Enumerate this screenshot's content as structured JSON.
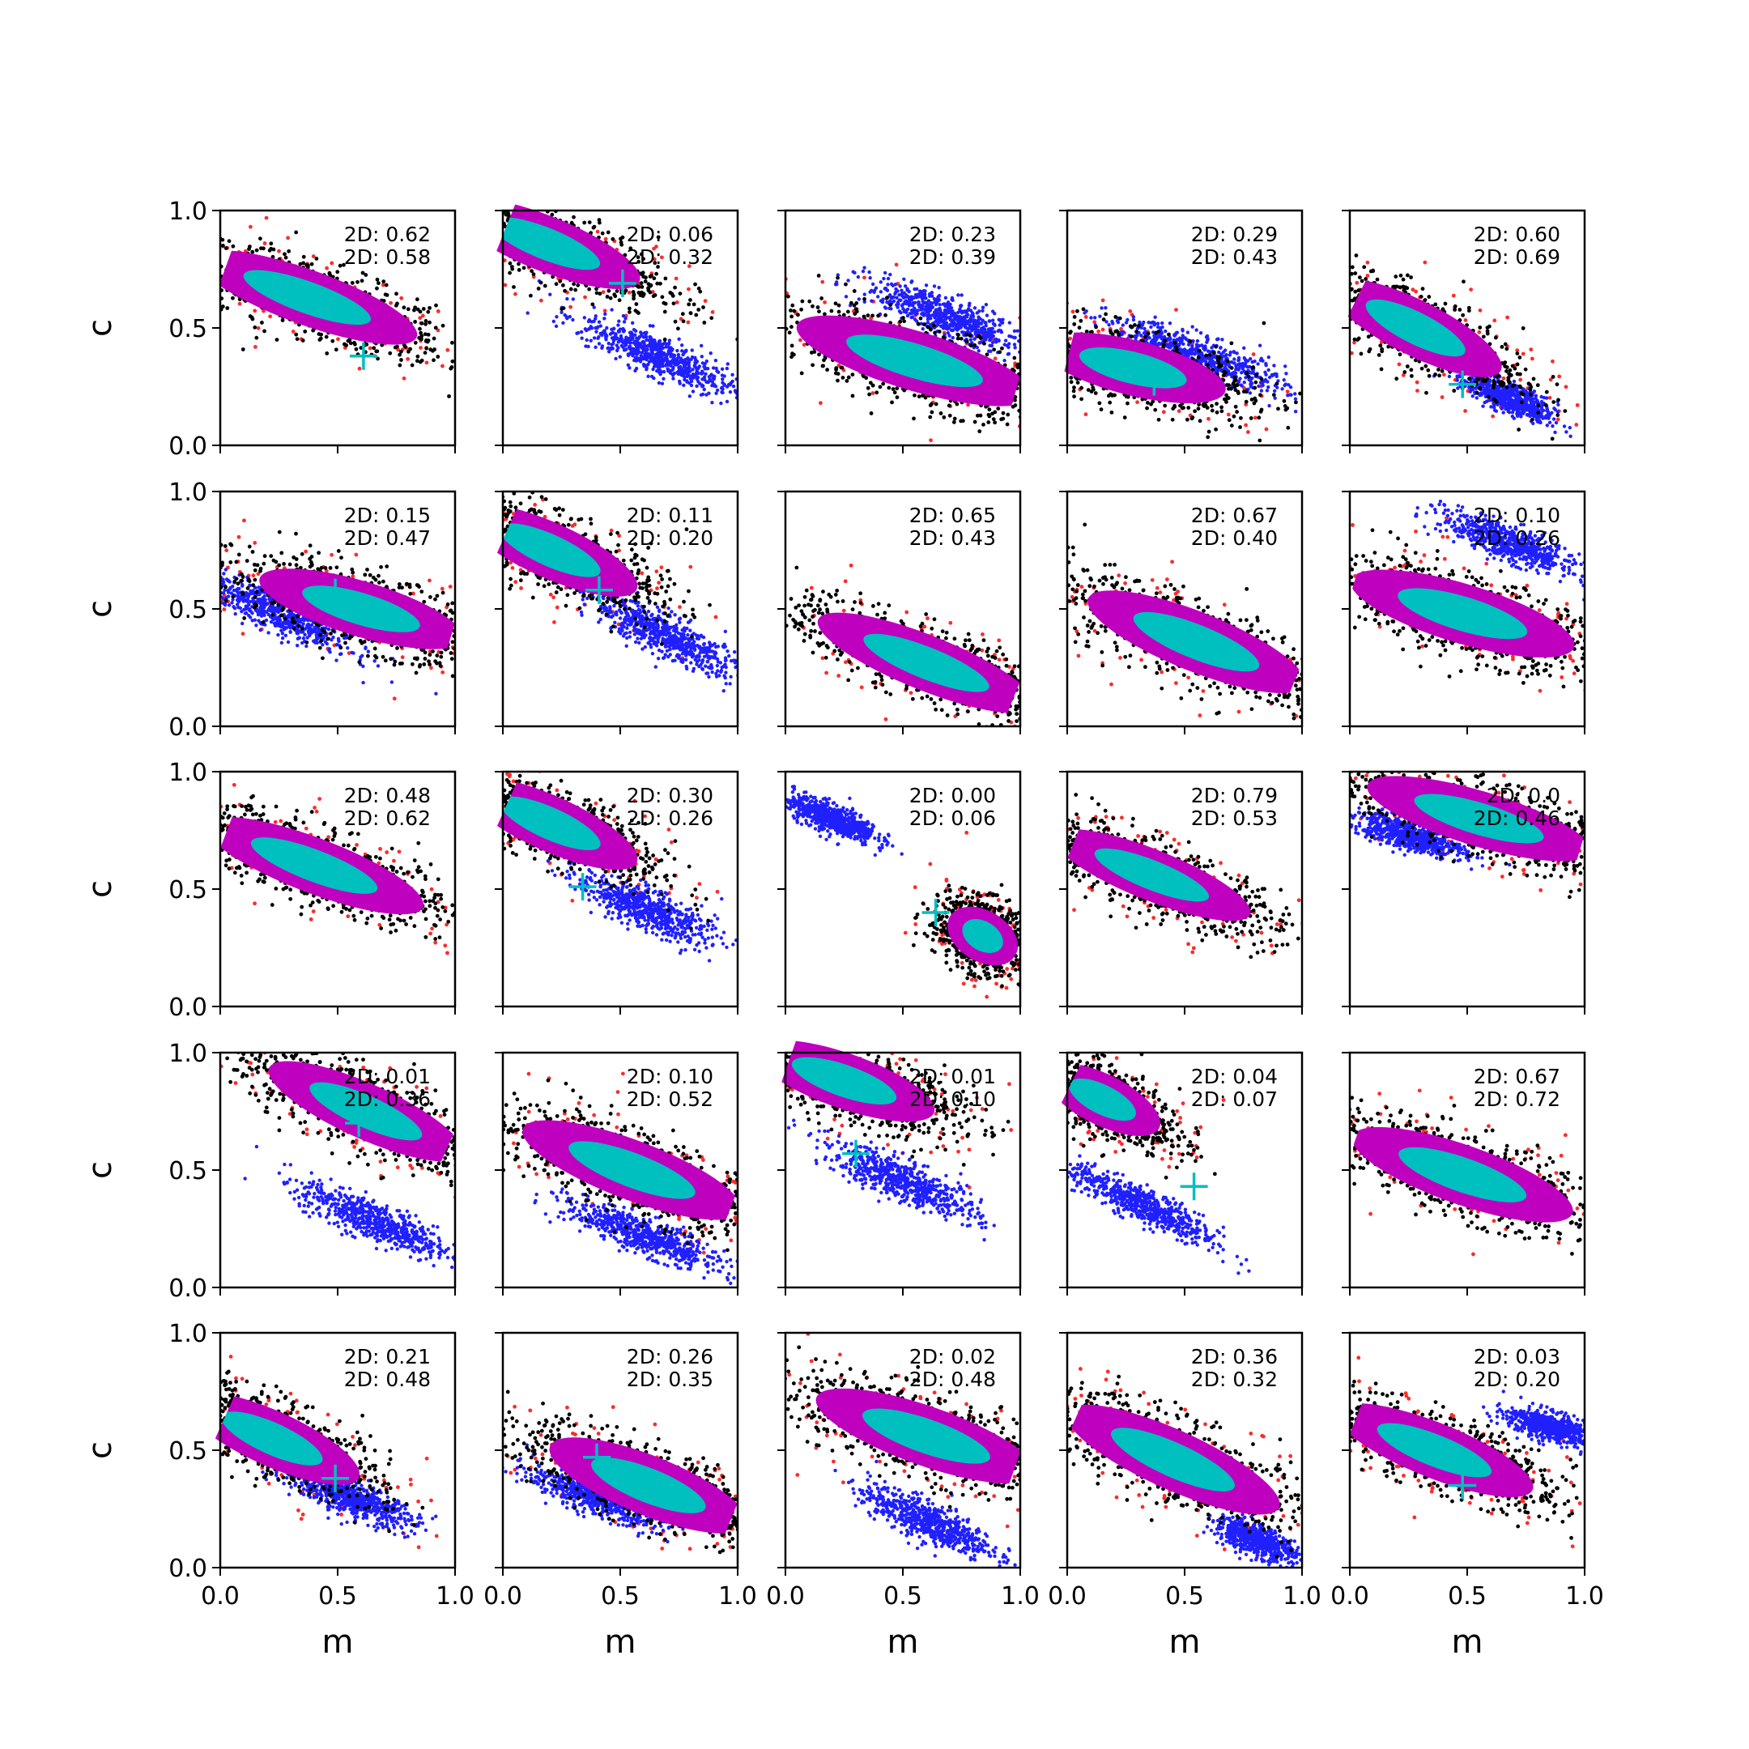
{
  "chart_data": {
    "type": "scatter",
    "layout": "5x5 grid of panels, shared axes",
    "xlabel": "m",
    "ylabel": "c",
    "xlim": [
      0.0,
      1.0
    ],
    "ylim": [
      0.0,
      1.0
    ],
    "xticks": [
      "0.0",
      "0.5",
      "1.0"
    ],
    "yticks": [
      "0.0",
      "0.5",
      "1.0"
    ],
    "grid": false,
    "legend": "none",
    "colors": {
      "outer_scatter": "#ff2a2a",
      "black_samples": "#000000",
      "second_mode": "#2020ff",
      "mid_contour": "#bf00bf",
      "inner_contour": "#00bfbf",
      "truth_marker": "#00bfbf"
    },
    "panels": [
      {
        "row": 0,
        "col": 0,
        "labels": [
          "2D: 0.62",
          "2D: 0.58"
        ],
        "main": {
          "cx": 0.37,
          "cy": 0.63,
          "hw": 0.55,
          "hh": 0.13,
          "slope": -0.36
        },
        "blue": null,
        "truth": [
          0.61,
          0.38
        ]
      },
      {
        "row": 0,
        "col": 1,
        "labels": [
          "2D: 0.06",
          "2D: 0.32"
        ],
        "main": {
          "cx": 0.18,
          "cy": 0.86,
          "hw": 0.48,
          "hh": 0.13,
          "slope": -0.4
        },
        "blue": {
          "cx": 0.66,
          "cy": 0.38,
          "hw": 0.35,
          "hh": 0.08,
          "slope": -0.45
        },
        "truth": [
          0.51,
          0.69
        ]
      },
      {
        "row": 0,
        "col": 2,
        "labels": [
          "2D: 0.23",
          "2D: 0.39"
        ],
        "main": {
          "cx": 0.55,
          "cy": 0.36,
          "hw": 0.58,
          "hh": 0.14,
          "slope": -0.3
        },
        "blue": {
          "cx": 0.68,
          "cy": 0.55,
          "hw": 0.35,
          "hh": 0.08,
          "slope": -0.4
        },
        "truth": null
      },
      {
        "row": 0,
        "col": 3,
        "labels": [
          "2D: 0.29",
          "2D: 0.43"
        ],
        "main": {
          "cx": 0.28,
          "cy": 0.33,
          "hw": 0.45,
          "hh": 0.13,
          "slope": -0.25
        },
        "blue": {
          "cx": 0.55,
          "cy": 0.38,
          "hw": 0.4,
          "hh": 0.08,
          "slope": -0.35
        },
        "truth": [
          0.37,
          0.27
        ]
      },
      {
        "row": 0,
        "col": 4,
        "labels": [
          "2D: 0.60",
          "2D: 0.69"
        ],
        "main": {
          "cx": 0.28,
          "cy": 0.5,
          "hw": 0.45,
          "hh": 0.13,
          "slope": -0.5
        },
        "blue": {
          "cx": 0.68,
          "cy": 0.2,
          "hw": 0.2,
          "hh": 0.06,
          "slope": -0.45
        },
        "truth": [
          0.48,
          0.26
        ]
      },
      {
        "row": 1,
        "col": 0,
        "labels": [
          "2D: 0.15",
          "2D: 0.47"
        ],
        "main": {
          "cx": 0.6,
          "cy": 0.5,
          "hw": 0.5,
          "hh": 0.13,
          "slope": -0.3
        },
        "blue": {
          "cx": 0.25,
          "cy": 0.48,
          "hw": 0.35,
          "hh": 0.08,
          "slope": -0.45
        },
        "truth": [
          0.49,
          0.57
        ]
      },
      {
        "row": 1,
        "col": 1,
        "labels": [
          "2D: 0.11",
          "2D: 0.20"
        ],
        "main": {
          "cx": 0.2,
          "cy": 0.75,
          "hw": 0.45,
          "hh": 0.13,
          "slope": -0.45
        },
        "blue": {
          "cx": 0.7,
          "cy": 0.38,
          "hw": 0.35,
          "hh": 0.08,
          "slope": -0.5
        },
        "truth": [
          0.41,
          0.58
        ]
      },
      {
        "row": 1,
        "col": 2,
        "labels": [
          "2D: 0.65",
          "2D: 0.43"
        ],
        "main": {
          "cx": 0.6,
          "cy": 0.27,
          "hw": 0.55,
          "hh": 0.13,
          "slope": -0.4
        },
        "blue": null,
        "truth": null
      },
      {
        "row": 1,
        "col": 3,
        "labels": [
          "2D: 0.67",
          "2D: 0.40"
        ],
        "main": {
          "cx": 0.55,
          "cy": 0.36,
          "hw": 0.55,
          "hh": 0.14,
          "slope": -0.4
        },
        "blue": null,
        "truth": null
      },
      {
        "row": 1,
        "col": 4,
        "labels": [
          "2D: 0.10",
          "2D: 0.26"
        ],
        "main": {
          "cx": 0.48,
          "cy": 0.48,
          "hw": 0.55,
          "hh": 0.14,
          "slope": -0.3
        },
        "blue": {
          "cx": 0.68,
          "cy": 0.78,
          "hw": 0.3,
          "hh": 0.07,
          "slope": -0.4
        },
        "truth": null
      },
      {
        "row": 2,
        "col": 0,
        "labels": [
          "2D: 0.48",
          "2D: 0.62"
        ],
        "main": {
          "cx": 0.4,
          "cy": 0.6,
          "hw": 0.55,
          "hh": 0.13,
          "slope": -0.38
        },
        "blue": null,
        "truth": null
      },
      {
        "row": 2,
        "col": 1,
        "labels": [
          "2D: 0.30",
          "2D: 0.26"
        ],
        "main": {
          "cx": 0.2,
          "cy": 0.78,
          "hw": 0.45,
          "hh": 0.13,
          "slope": -0.45
        },
        "blue": {
          "cx": 0.6,
          "cy": 0.42,
          "hw": 0.3,
          "hh": 0.08,
          "slope": -0.45
        },
        "truth": [
          0.34,
          0.51
        ]
      },
      {
        "row": 2,
        "col": 2,
        "labels": [
          "2D: 0.00",
          "2D: 0.06"
        ],
        "main": {
          "cx": 0.84,
          "cy": 0.3,
          "hw": 0.18,
          "hh": 0.12,
          "slope": -0.6
        },
        "blue": {
          "cx": 0.2,
          "cy": 0.8,
          "hw": 0.2,
          "hh": 0.06,
          "slope": -0.4
        },
        "truth": [
          0.64,
          0.4
        ]
      },
      {
        "row": 2,
        "col": 3,
        "labels": [
          "2D: 0.79",
          "2D: 0.53"
        ],
        "main": {
          "cx": 0.36,
          "cy": 0.56,
          "hw": 0.5,
          "hh": 0.12,
          "slope": -0.4
        },
        "blue": null,
        "truth": null
      },
      {
        "row": 2,
        "col": 4,
        "labels": [
          "2D: 0.0",
          "2D: 0.46"
        ],
        "main": {
          "cx": 0.55,
          "cy": 0.8,
          "hw": 0.55,
          "hh": 0.13,
          "slope": -0.3
        },
        "blue": {
          "cx": 0.25,
          "cy": 0.73,
          "hw": 0.25,
          "hh": 0.06,
          "slope": -0.3
        },
        "truth": null
      },
      {
        "row": 3,
        "col": 0,
        "labels": [
          "2D: 0.01",
          "2D: 0.36"
        ],
        "main": {
          "cx": 0.62,
          "cy": 0.75,
          "hw": 0.5,
          "hh": 0.13,
          "slope": -0.45
        },
        "blue": {
          "cx": 0.66,
          "cy": 0.28,
          "hw": 0.35,
          "hh": 0.08,
          "slope": -0.45
        },
        "truth": [
          0.59,
          0.7
        ]
      },
      {
        "row": 3,
        "col": 1,
        "labels": [
          "2D: 0.10",
          "2D: 0.52"
        ],
        "main": {
          "cx": 0.55,
          "cy": 0.5,
          "hw": 0.55,
          "hh": 0.14,
          "slope": -0.38
        },
        "blue": {
          "cx": 0.6,
          "cy": 0.22,
          "hw": 0.35,
          "hh": 0.07,
          "slope": -0.4
        },
        "truth": null
      },
      {
        "row": 3,
        "col": 2,
        "labels": [
          "2D: 0.01",
          "2D: 0.10"
        ],
        "main": {
          "cx": 0.25,
          "cy": 0.88,
          "hw": 0.45,
          "hh": 0.13,
          "slope": -0.35
        },
        "blue": {
          "cx": 0.5,
          "cy": 0.45,
          "hw": 0.35,
          "hh": 0.08,
          "slope": -0.45
        },
        "truth": [
          0.3,
          0.57
        ]
      },
      {
        "row": 3,
        "col": 3,
        "labels": [
          "2D: 0.04",
          "2D: 0.07"
        ],
        "main": {
          "cx": 0.15,
          "cy": 0.8,
          "hw": 0.3,
          "hh": 0.12,
          "slope": -0.5
        },
        "blue": {
          "cx": 0.32,
          "cy": 0.35,
          "hw": 0.35,
          "hh": 0.07,
          "slope": -0.5
        },
        "truth": [
          0.54,
          0.43
        ]
      },
      {
        "row": 3,
        "col": 4,
        "labels": [
          "2D: 0.67",
          "2D: 0.72"
        ],
        "main": {
          "cx": 0.48,
          "cy": 0.48,
          "hw": 0.55,
          "hh": 0.14,
          "slope": -0.35
        },
        "blue": null,
        "truth": null
      },
      {
        "row": 4,
        "col": 0,
        "labels": [
          "2D: 0.21",
          "2D: 0.48"
        ],
        "main": {
          "cx": 0.22,
          "cy": 0.55,
          "hw": 0.45,
          "hh": 0.13,
          "slope": -0.45
        },
        "blue": {
          "cx": 0.55,
          "cy": 0.3,
          "hw": 0.3,
          "hh": 0.07,
          "slope": -0.4
        },
        "truth": [
          0.49,
          0.38
        ]
      },
      {
        "row": 4,
        "col": 1,
        "labels": [
          "2D: 0.26",
          "2D: 0.35"
        ],
        "main": {
          "cx": 0.62,
          "cy": 0.35,
          "hw": 0.5,
          "hh": 0.14,
          "slope": -0.4
        },
        "blue": {
          "cx": 0.4,
          "cy": 0.3,
          "hw": 0.3,
          "hh": 0.07,
          "slope": -0.35
        },
        "truth": [
          0.4,
          0.47
        ]
      },
      {
        "row": 4,
        "col": 2,
        "labels": [
          "2D: 0.02",
          "2D: 0.48"
        ],
        "main": {
          "cx": 0.6,
          "cy": 0.56,
          "hw": 0.55,
          "hh": 0.14,
          "slope": -0.35
        },
        "blue": {
          "cx": 0.6,
          "cy": 0.2,
          "hw": 0.3,
          "hh": 0.08,
          "slope": -0.45
        },
        "truth": null
      },
      {
        "row": 4,
        "col": 3,
        "labels": [
          "2D: 0.36",
          "2D: 0.32"
        ],
        "main": {
          "cx": 0.45,
          "cy": 0.46,
          "hw": 0.55,
          "hh": 0.14,
          "slope": -0.45
        },
        "blue": {
          "cx": 0.8,
          "cy": 0.12,
          "hw": 0.18,
          "hh": 0.06,
          "slope": -0.4
        },
        "truth": null
      },
      {
        "row": 4,
        "col": 4,
        "labels": [
          "2D: 0.03",
          "2D: 0.20"
        ],
        "main": {
          "cx": 0.36,
          "cy": 0.5,
          "hw": 0.5,
          "hh": 0.13,
          "slope": -0.4
        },
        "blue": {
          "cx": 0.86,
          "cy": 0.6,
          "hw": 0.2,
          "hh": 0.06,
          "slope": -0.25
        },
        "truth": [
          0.48,
          0.35
        ]
      }
    ]
  }
}
